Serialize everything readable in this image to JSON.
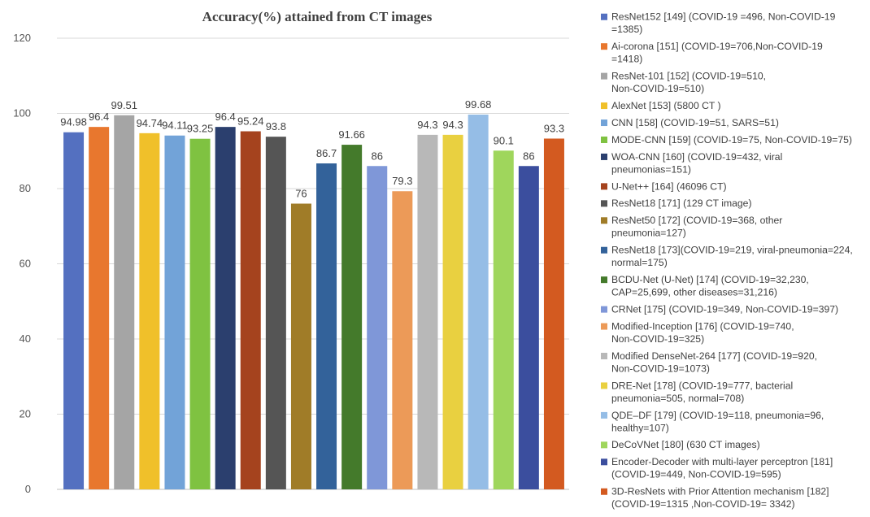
{
  "chart_data": {
    "type": "bar",
    "title": "Accuracy(%) attained from CT images",
    "xlabel": "",
    "ylabel": "",
    "ylim": [
      0,
      120
    ],
    "yticks": [
      0,
      20,
      40,
      60,
      80,
      100,
      120
    ],
    "grid": true,
    "legend_position": "right",
    "series": [
      {
        "name": "ResNet152 [149] (COVID-19 =496, Non-COVID-19 =1385)",
        "value": 94.98,
        "label": "94.98",
        "color": "#5470c0"
      },
      {
        "name": "Ai-corona [151] (COVID-19=706,Non-COVID-19 =1418)",
        "value": 96.4,
        "label": "96.4",
        "color": "#e8772e"
      },
      {
        "name": "ResNet-101 [152] (COVID-19=510, Non-COVID-19=510)",
        "value": 99.51,
        "label": "99.51",
        "color": "#a5a5a5"
      },
      {
        "name": "AlexNet [153] (5800 CT )",
        "value": 94.74,
        "label": "94.74",
        "color": "#f0c02a"
      },
      {
        "name": "CNN [158] (COVID-19=51, SARS=51)",
        "value": 94.11,
        "label": "94.11",
        "color": "#72a3d8"
      },
      {
        "name": "MODE-CNN [159] (COVID-19=75, Non-COVID-19=75)",
        "value": 93.25,
        "label": "93.25",
        "color": "#7fc241"
      },
      {
        "name": "WOA-CNN [160] (COVID-19=432, viral pneumonias=151)",
        "value": 96.4,
        "label": "96.4",
        "color": "#2b3f6e"
      },
      {
        "name": "U-Net++ [164] (46096 CT)",
        "value": 95.24,
        "label": "95.24",
        "color": "#a5431e"
      },
      {
        "name": "ResNet18 [171] (129 CT image)",
        "value": 93.8,
        "label": "93.8",
        "color": "#555555"
      },
      {
        "name": "ResNet50 [172] (COVID-19=368, other pneumonia=127)",
        "value": 76,
        "label": "76",
        "color": "#a07c28"
      },
      {
        "name": "ResNet18 [173](COVID-19=219, viral-pneumonia=224, normal=175)",
        "value": 86.7,
        "label": "86.7",
        "color": "#33629a"
      },
      {
        "name": "BCDU-Net (U-Net) [174] (COVID-19=32,230, CAP=25,699, other diseases=31,216)",
        "value": 91.66,
        "label": "91.66",
        "color": "#447a2b"
      },
      {
        "name": "CRNet [175] (COVID-19=349, Non-COVID-19=397)",
        "value": 86,
        "label": "86",
        "color": "#7f97d8"
      },
      {
        "name": "Modified-Inception [176] (COVID-19=740, Non-COVID-19=325)",
        "value": 79.3,
        "label": "79.3",
        "color": "#ec9a58"
      },
      {
        "name": "Modified DenseNet-264 [177] (COVID-19=920, Non-COVID-19=1073)",
        "value": 94.3,
        "label": "94.3",
        "color": "#b8b8b8"
      },
      {
        "name": "DRE-Net [178] (COVID-19=777, bacterial pneumonia=505, normal=708)",
        "value": 94.3,
        "label": "94.3",
        "color": "#e9d040"
      },
      {
        "name": "QDE–DF [179] (COVID-19=118, pneumonia=96, healthy=107)",
        "value": 99.68,
        "label": "99.68",
        "color": "#95bde6"
      },
      {
        "name": "DeCoVNet [180] (630 CT images)",
        "value": 90.1,
        "label": "90.1",
        "color": "#9fd65c"
      },
      {
        "name": "Encoder-Decoder with multi-layer perceptron [181] (COVID-19=449, Non-COVID-19=595)",
        "value": 86,
        "label": "86",
        "color": "#3b4e9e"
      },
      {
        "name": "3D-ResNets with Prior Attention mechanism [182] (COVID-19=1315 ,Non-COVID-19= 3342)",
        "value": 93.3,
        "label": "93.3",
        "color": "#d35a20"
      }
    ]
  }
}
